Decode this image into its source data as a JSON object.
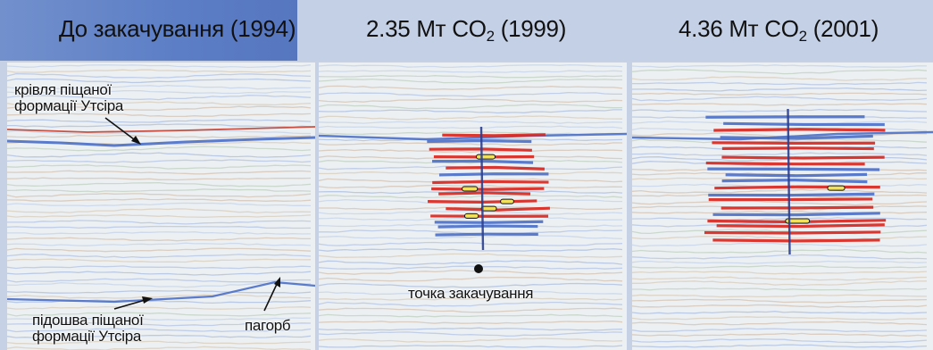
{
  "panels": [
    {
      "title": "До закачування (1994)"
    },
    {
      "title_main": "2.35 Мт CO",
      "title_sub": "2",
      "title_tail": " (1999)"
    },
    {
      "title_main": "4.36 Мт CO",
      "title_sub": "2",
      "title_tail": " (2001)"
    }
  ],
  "annotations": {
    "top_formation_line1": "крівля піщаної",
    "top_formation_line2": "формації Утсіра",
    "base_formation_line1": "підошва піщаної",
    "base_formation_line2": "формації Утсіра",
    "mound": "пагорб",
    "injection_point": "точка закачування"
  },
  "colors": {
    "header_accent": "#5c7ec6",
    "header_band": "#c4d0e6",
    "trace_blue": "#4b6fc8",
    "trace_red": "#c8402f",
    "anomaly_yellow": "#f2e05a",
    "anomaly_red": "#d8241c"
  }
}
